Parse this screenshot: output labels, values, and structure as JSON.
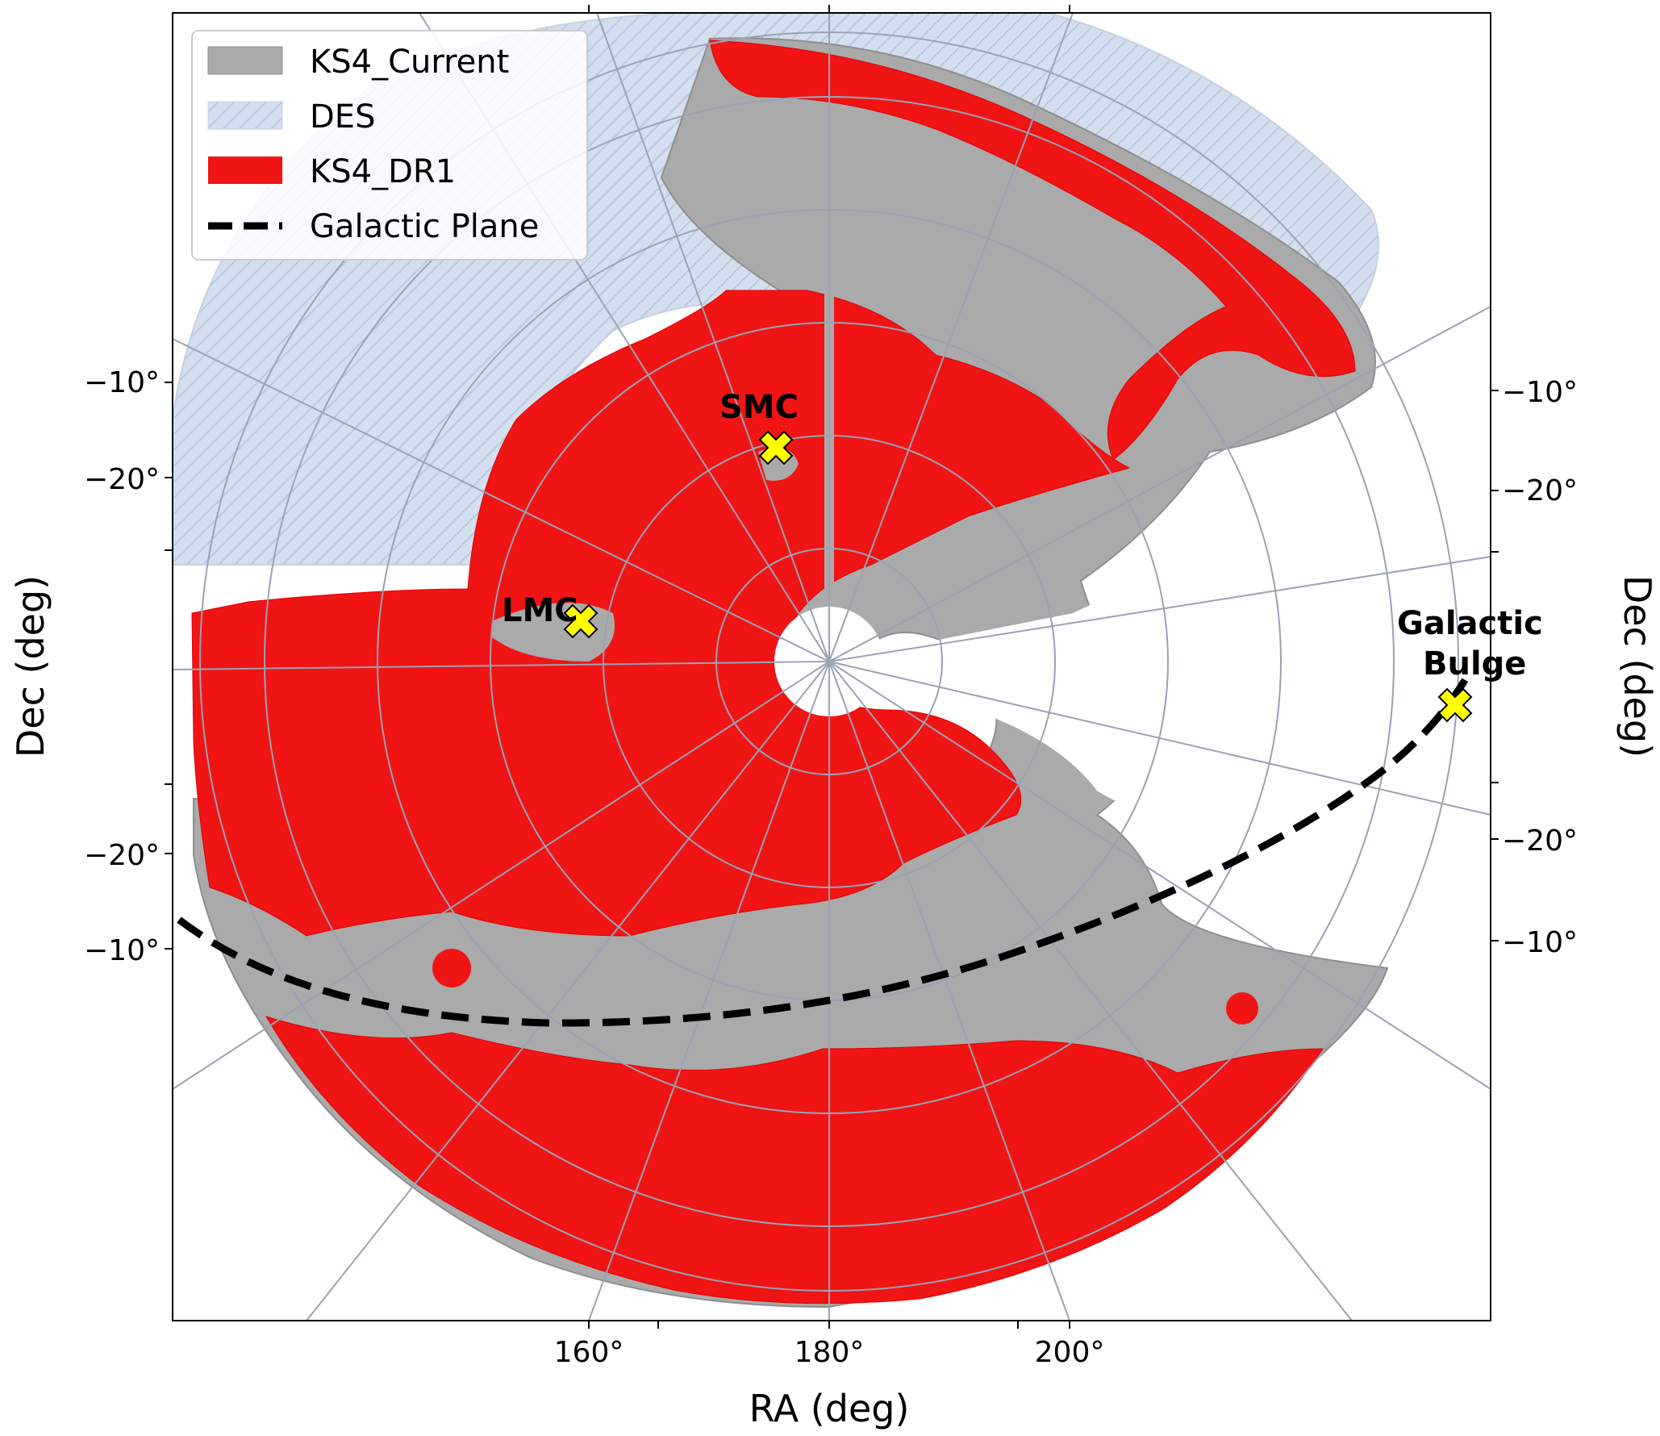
{
  "legend": {
    "items": [
      {
        "label": "KS4_Current",
        "color": "#aaaaaa",
        "kind": "patch"
      },
      {
        "label": "DES",
        "color": "#cdd9ea",
        "kind": "hatched-patch"
      },
      {
        "label": "KS4_DR1",
        "color": "#f01010",
        "kind": "patch"
      },
      {
        "label": "Galactic Plane",
        "color": "#000000",
        "kind": "dashed-line"
      }
    ]
  },
  "axes": {
    "xlabel": "RA (deg)",
    "ylabel_left": "Dec (deg)",
    "ylabel_right": "Dec (deg)",
    "bottom_ticks": [
      "160°",
      "180°",
      "200°"
    ],
    "left_ticks": [
      "−10°",
      "−20°",
      "−20°",
      "−10°"
    ],
    "right_ticks": [
      "−10°",
      "−20°",
      "−20°",
      "−10°"
    ]
  },
  "markers": [
    {
      "name": "smc",
      "label": "SMC",
      "color": "#ffff00"
    },
    {
      "name": "lmc",
      "label": "LMC",
      "color": "#ffff00"
    },
    {
      "name": "galactic-bulge",
      "label_line1": "Galactic",
      "label_line2": "Bulge",
      "color": "#ffff00"
    }
  ],
  "colors": {
    "ks4_current": "#aaaaaa",
    "des": "#cdd9ea",
    "ks4_dr1": "#f01010",
    "graticule": "#9aa3b3"
  }
}
